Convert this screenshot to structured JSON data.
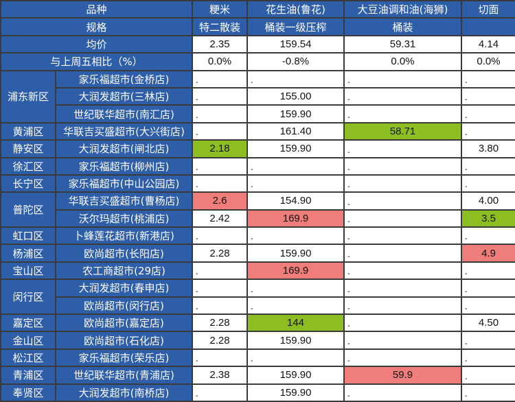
{
  "colors": {
    "header_bg": "#2f5ea8",
    "low_highlight": "#8cbe22",
    "high_highlight": "#ee7d7b"
  },
  "header": {
    "variety_label": "品种",
    "spec_label": "规格",
    "avg_label": "均价",
    "change_label": "与上周五相比（%）",
    "products": [
      {
        "name": "粳米",
        "spec": "特二散装",
        "avg": "2.35",
        "change": "0.0%"
      },
      {
        "name": "花生油(鲁花)",
        "spec": "桶装一级压榨",
        "avg": "159.54",
        "change": "-0.8%"
      },
      {
        "name": "大豆油调和油(海狮)",
        "spec": "桶装",
        "avg": "59.31",
        "change": "0.0%"
      },
      {
        "name": "切面",
        "spec": "",
        "avg": "4.14",
        "change": "0.0%"
      }
    ]
  },
  "rows": [
    {
      "district": "浦东新区",
      "rowspan": 3,
      "store": "家乐福超市(金桥店)",
      "values": [
        "-",
        "-",
        "-",
        "-"
      ],
      "highlight": [
        "",
        "",
        "",
        ""
      ]
    },
    {
      "store": "大润发超市(三林店)",
      "values": [
        "-",
        "155.00",
        "-",
        "-"
      ],
      "highlight": [
        "",
        "",
        "",
        ""
      ]
    },
    {
      "store": "世纪联华超市(南汇店)",
      "values": [
        "-",
        "159.90",
        "-",
        "-"
      ],
      "highlight": [
        "",
        "",
        "",
        ""
      ]
    },
    {
      "district": "黄浦区",
      "rowspan": 1,
      "store": "华联吉买盛超市(大兴街店)",
      "values": [
        "-",
        "161.40",
        "58.71",
        "-"
      ],
      "highlight": [
        "",
        "",
        "green",
        ""
      ]
    },
    {
      "district": "静安区",
      "rowspan": 1,
      "store": "大润发超市(闸北店)",
      "values": [
        "2.18",
        "159.90",
        "-",
        "3.80"
      ],
      "highlight": [
        "green",
        "",
        "",
        ""
      ]
    },
    {
      "district": "徐汇区",
      "rowspan": 1,
      "store": "家乐福超市(柳州店)",
      "values": [
        "-",
        "-",
        "-",
        "-"
      ],
      "highlight": [
        "",
        "",
        "",
        ""
      ]
    },
    {
      "district": "长宁区",
      "rowspan": 1,
      "store": "家乐福超市(中山公园店)",
      "values": [
        "-",
        "-",
        "-",
        "-"
      ],
      "highlight": [
        "",
        "",
        "",
        ""
      ]
    },
    {
      "district": "普陀区",
      "rowspan": 2,
      "store": "华联吉买盛超市(曹杨店)",
      "values": [
        "2.6",
        "154.90",
        "-",
        "4.00"
      ],
      "highlight": [
        "red",
        "",
        "",
        ""
      ]
    },
    {
      "store": "沃尔玛超市(桃浦店)",
      "values": [
        "2.42",
        "169.9",
        "-",
        "3.5"
      ],
      "highlight": [
        "",
        "red",
        "",
        "green"
      ]
    },
    {
      "district": "虹口区",
      "rowspan": 1,
      "store": "卜蜂莲花超市(新港店)",
      "values": [
        "-",
        "-",
        "-",
        "-"
      ],
      "highlight": [
        "",
        "",
        "",
        ""
      ]
    },
    {
      "district": "杨浦区",
      "rowspan": 1,
      "store": "欧尚超市(长阳店)",
      "values": [
        "2.28",
        "159.90",
        "-",
        "4.9"
      ],
      "highlight": [
        "",
        "",
        "",
        "red"
      ]
    },
    {
      "district": "宝山区",
      "rowspan": 1,
      "store": "农工商超市(29店)",
      "values": [
        "-",
        "169.9",
        "-",
        "-"
      ],
      "highlight": [
        "",
        "red",
        "",
        ""
      ]
    },
    {
      "district": "闵行区",
      "rowspan": 2,
      "store": "大润发超市(春申店)",
      "values": [
        "-",
        "-",
        "-",
        "-"
      ],
      "highlight": [
        "",
        "",
        "",
        ""
      ]
    },
    {
      "store": "欧尚超市(闵行店)",
      "values": [
        "-",
        "-",
        "-",
        "-"
      ],
      "highlight": [
        "",
        "",
        "",
        ""
      ]
    },
    {
      "district": "嘉定区",
      "rowspan": 1,
      "store": "欧尚超市(嘉定店)",
      "values": [
        "2.28",
        "144",
        "-",
        "4.50"
      ],
      "highlight": [
        "",
        "green",
        "",
        ""
      ]
    },
    {
      "district": "金山区",
      "rowspan": 1,
      "store": "欧尚超市(石化店)",
      "values": [
        "2.28",
        "159.90",
        "-",
        "-"
      ],
      "highlight": [
        "",
        "",
        "",
        ""
      ]
    },
    {
      "district": "松江区",
      "rowspan": 1,
      "store": "家乐福超市(荣乐店)",
      "values": [
        "-",
        "-",
        "-",
        "-"
      ],
      "highlight": [
        "",
        "",
        "",
        ""
      ]
    },
    {
      "district": "青浦区",
      "rowspan": 1,
      "store": "世纪联华超市(青浦店)",
      "values": [
        "2.38",
        "159.90",
        "59.9",
        "-"
      ],
      "highlight": [
        "",
        "",
        "red",
        ""
      ]
    },
    {
      "district": "奉贤区",
      "rowspan": 1,
      "store": "大润发超市(南桥店)",
      "values": [
        "-",
        "159.90",
        "-",
        "-"
      ],
      "highlight": [
        "",
        "",
        "",
        ""
      ]
    }
  ]
}
